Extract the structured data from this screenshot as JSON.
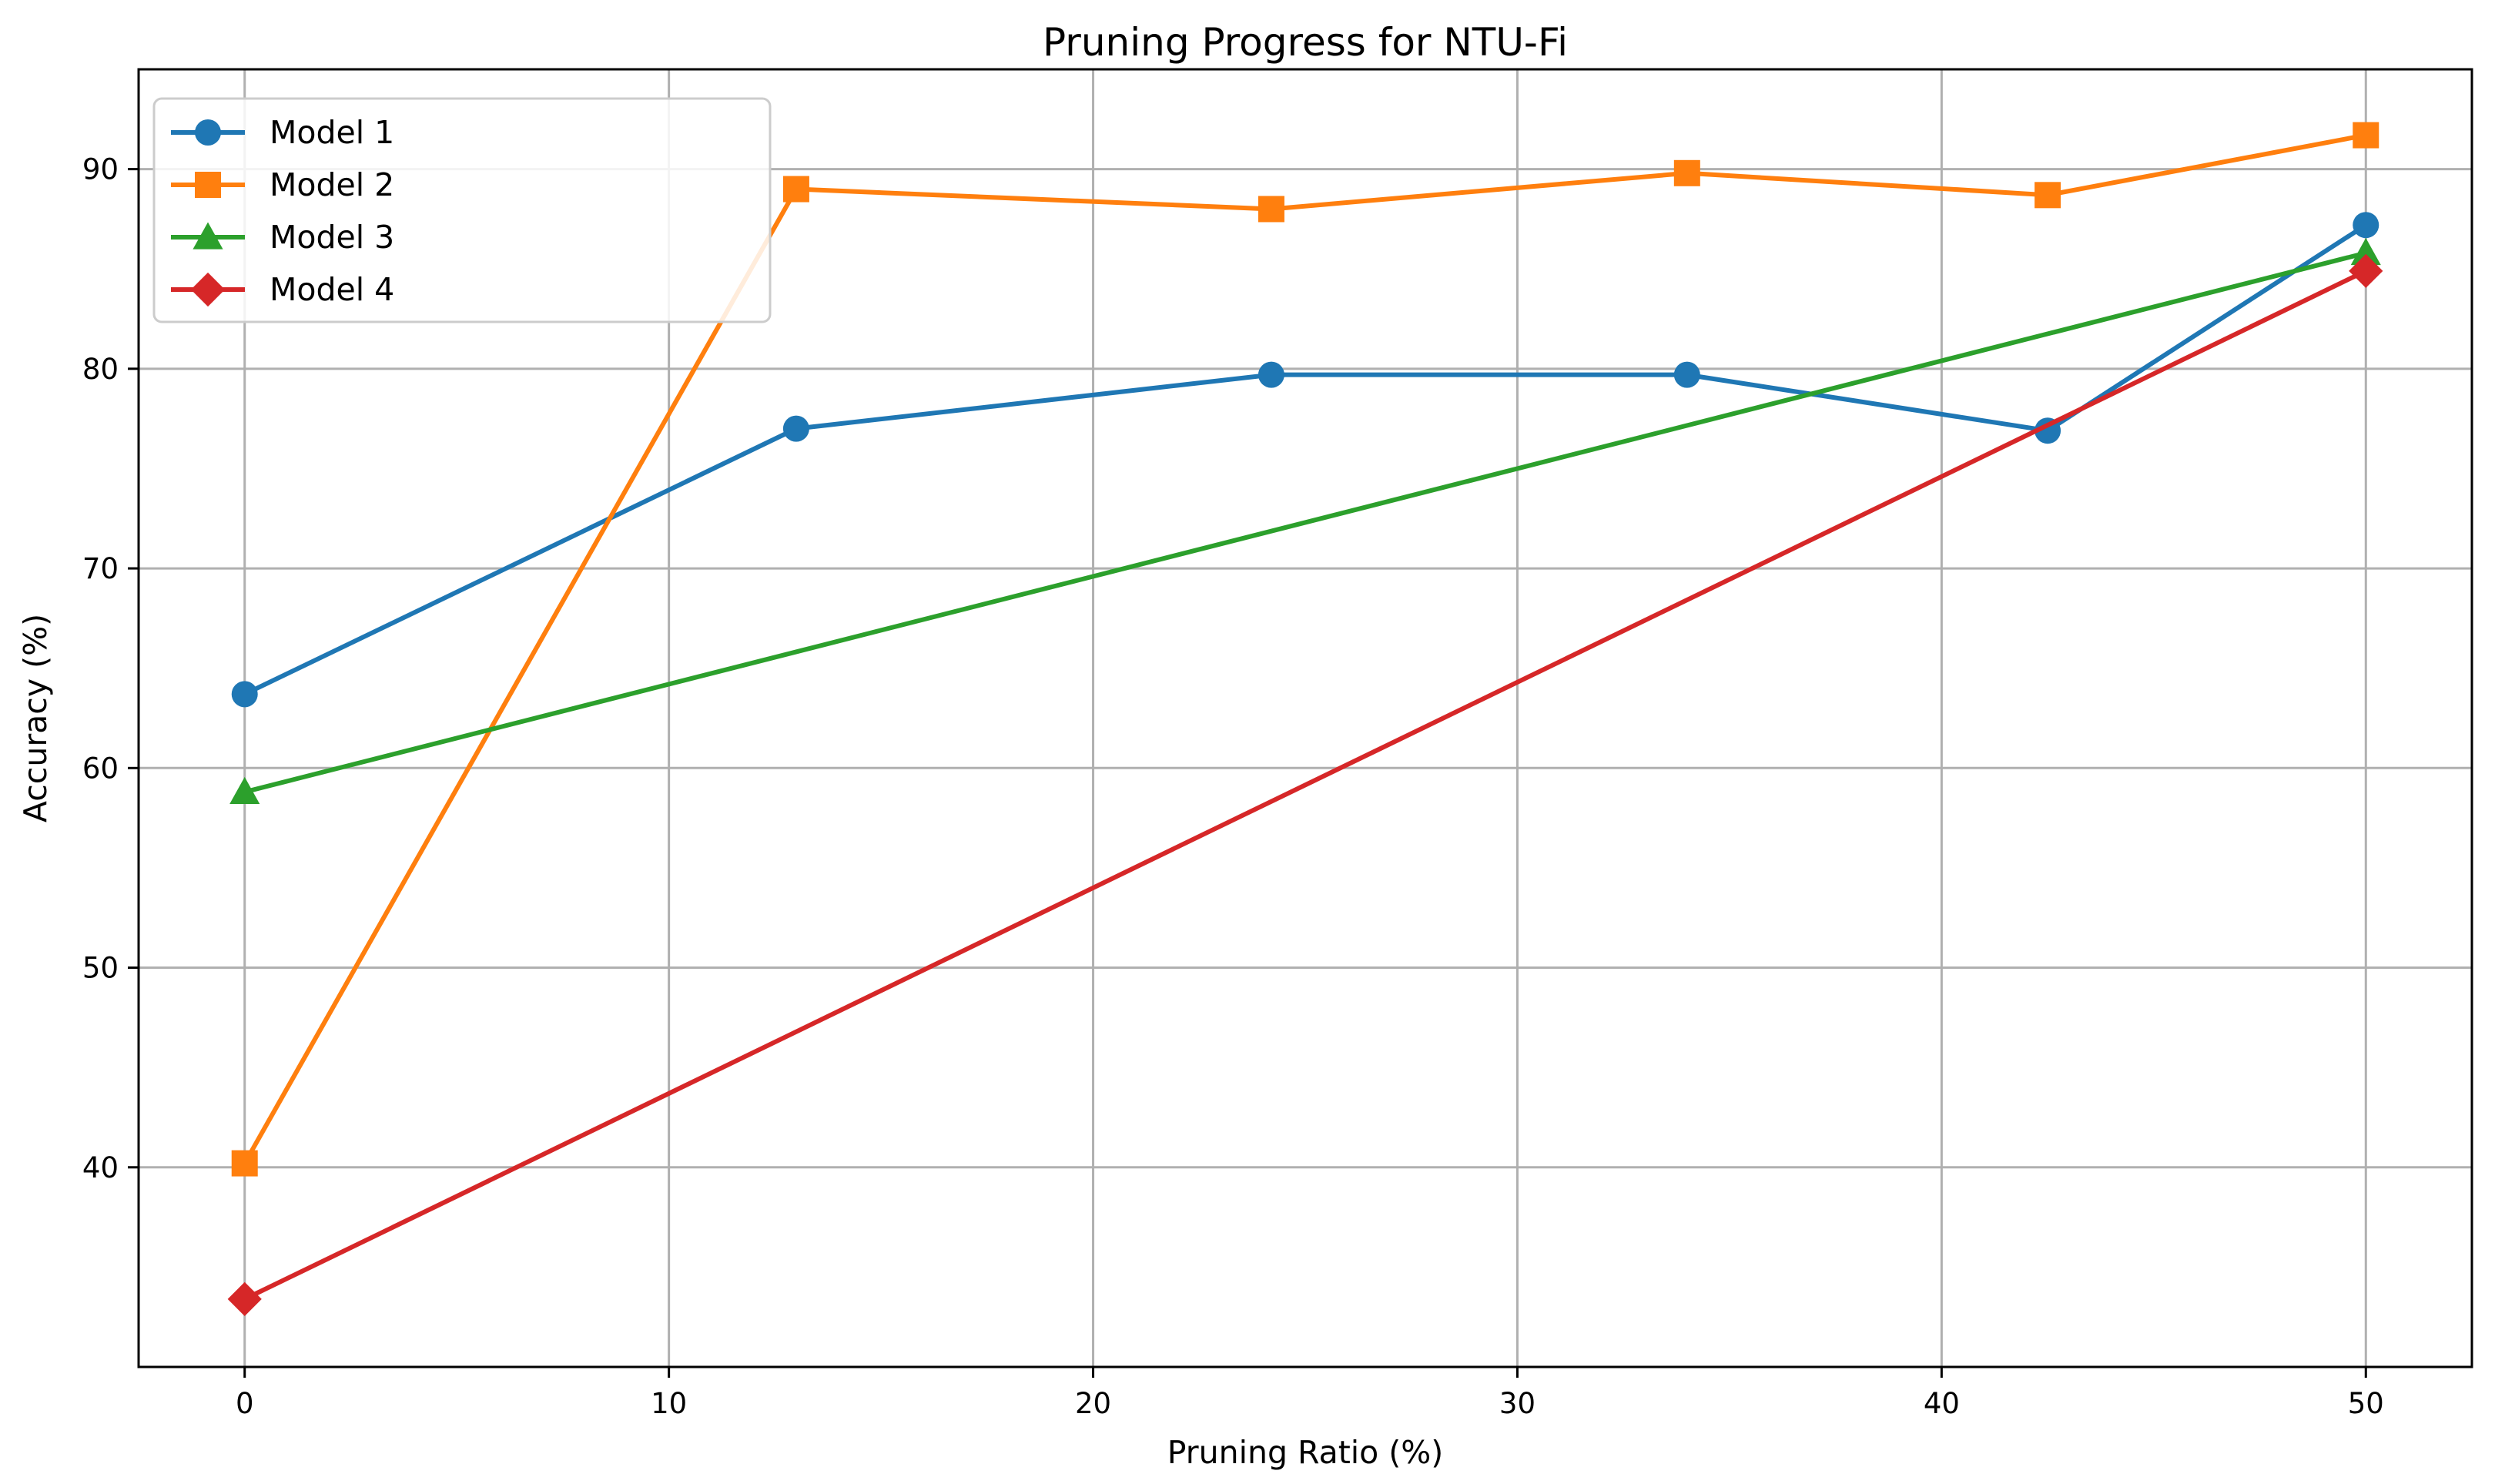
{
  "chart_data": {
    "type": "line",
    "title": "Pruning Progress for NTU-Fi",
    "xlabel": "Pruning Ratio (%)",
    "ylabel": "Accuracy (%)",
    "xlim": [
      -2.5,
      52.5
    ],
    "ylim": [
      30,
      95
    ],
    "xticks": [
      0,
      10,
      20,
      30,
      40,
      50
    ],
    "yticks": [
      40,
      50,
      60,
      70,
      80,
      90
    ],
    "grid": true,
    "legend_position": "upper-left",
    "series": [
      {
        "name": "Model 1",
        "color": "#1f77b4",
        "marker": "circle",
        "x": [
          0,
          13,
          24.2,
          34,
          42.5,
          50
        ],
        "y": [
          63.7,
          77,
          79.7,
          79.7,
          76.9,
          87.2
        ]
      },
      {
        "name": "Model 2",
        "color": "#ff7f0e",
        "marker": "square",
        "x": [
          0,
          13,
          24.2,
          34,
          42.5,
          50
        ],
        "y": [
          40.2,
          89,
          88,
          89.8,
          88.7,
          91.7
        ]
      },
      {
        "name": "Model 3",
        "color": "#2ca02c",
        "marker": "triangle",
        "x": [
          0,
          50
        ],
        "y": [
          58.8,
          85.8
        ]
      },
      {
        "name": "Model 4",
        "color": "#d62728",
        "marker": "diamond",
        "x": [
          0,
          50
        ],
        "y": [
          33.4,
          84.9
        ]
      }
    ]
  }
}
